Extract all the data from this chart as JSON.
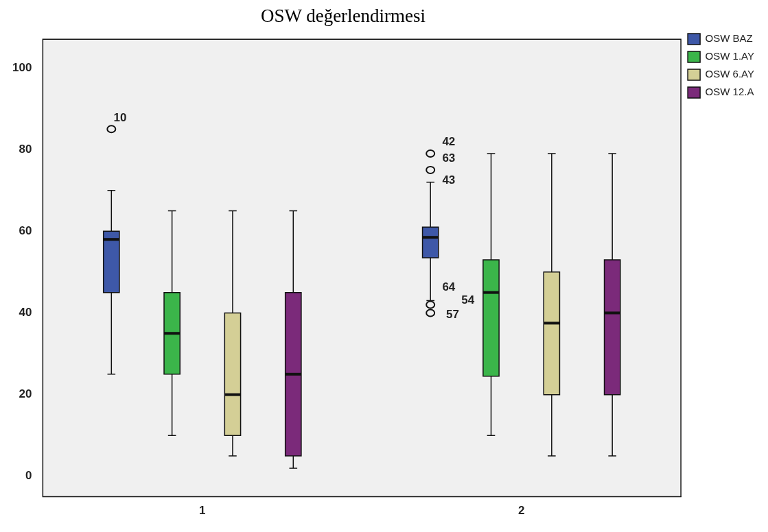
{
  "chart_data": {
    "type": "box",
    "title": "OSW değerlendirmesi",
    "categories": [
      "1",
      "2"
    ],
    "ylim": [
      -5,
      107
    ],
    "yticks": [
      0,
      20,
      40,
      60,
      80,
      100
    ],
    "grid": false,
    "legend": "top right",
    "series": [
      {
        "name": "OSW BAZ",
        "color": "#3e58a8",
        "boxes": [
          {
            "low": 25,
            "q1": 45,
            "median": 58,
            "q3": 60,
            "high": 70,
            "outliers": [
              85
            ]
          },
          {
            "low": 43,
            "q1": 53.5,
            "median": 58.5,
            "q3": 61,
            "high": 72,
            "outliers": [
              79,
              75,
              42,
              40
            ]
          }
        ]
      },
      {
        "name": "OSW 1.AY",
        "color": "#3bb54a",
        "boxes": [
          {
            "low": 10,
            "q1": 25,
            "median": 35,
            "q3": 45,
            "high": 65
          },
          {
            "low": 10,
            "q1": 24.5,
            "median": 45,
            "q3": 53,
            "high": 79
          }
        ]
      },
      {
        "name": "OSW 6.AY",
        "color": "#d4cf96",
        "boxes": [
          {
            "low": 5,
            "q1": 10,
            "median": 20,
            "q3": 40,
            "high": 65
          },
          {
            "low": 5,
            "q1": 20,
            "median": 37.5,
            "q3": 50,
            "high": 79
          }
        ]
      },
      {
        "name": "OSW 12.A",
        "color": "#7b2a7a",
        "boxes": [
          {
            "low": 2,
            "q1": 5,
            "median": 25,
            "q3": 45,
            "high": 65
          },
          {
            "low": 5,
            "q1": 20,
            "median": 40,
            "q3": 53,
            "high": 79
          }
        ]
      }
    ],
    "annotations": [
      "10",
      "42",
      "63",
      "43",
      "64",
      "54",
      "57"
    ]
  }
}
